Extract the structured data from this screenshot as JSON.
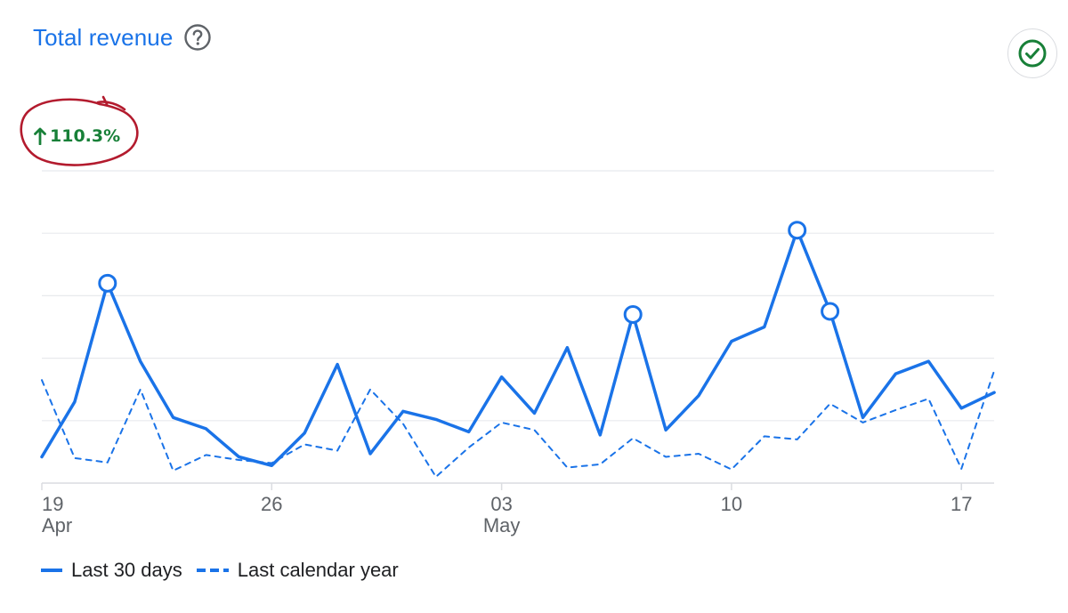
{
  "header": {
    "title": "Total revenue",
    "help_icon": "help-circle-icon",
    "status_icon": "check-circle-icon"
  },
  "change": {
    "value": "110.3%",
    "direction": "up",
    "icon": "arrow-up-icon",
    "color": "#188038",
    "annotation_color": "#b31b2e"
  },
  "chart_data": {
    "type": "line",
    "title": "",
    "xlabel": "",
    "ylabel": "",
    "grid": true,
    "ylim": [
      0,
      5
    ],
    "x_tick_labels": [
      {
        "day": "19",
        "month": "Apr",
        "index": 0
      },
      {
        "day": "26",
        "month": "",
        "index": 7
      },
      {
        "day": "03",
        "month": "May",
        "index": 14
      },
      {
        "day": "10",
        "month": "",
        "index": 21
      },
      {
        "day": "17",
        "month": "",
        "index": 28
      }
    ],
    "legend_position": "bottom-left",
    "series": [
      {
        "name": "Last 30 days",
        "style": "solid",
        "color": "#1a73e8",
        "values": [
          0.42,
          1.3,
          3.2,
          1.95,
          1.05,
          0.87,
          0.42,
          0.28,
          0.8,
          1.9,
          0.47,
          1.15,
          1.02,
          0.82,
          1.7,
          1.12,
          2.17,
          0.77,
          2.7,
          0.85,
          1.4,
          2.27,
          2.5,
          4.05,
          2.75,
          1.05,
          1.75,
          1.95,
          1.2,
          1.45
        ],
        "highlight_indices": [
          2,
          18,
          23,
          24
        ]
      },
      {
        "name": "Last calendar year",
        "style": "dashed",
        "color": "#1a73e8",
        "values": [
          1.65,
          0.4,
          0.33,
          1.5,
          0.2,
          0.45,
          0.37,
          0.32,
          0.62,
          0.52,
          1.5,
          0.95,
          0.1,
          0.57,
          0.97,
          0.85,
          0.25,
          0.3,
          0.72,
          0.42,
          0.47,
          0.22,
          0.75,
          0.7,
          1.27,
          0.97,
          1.17,
          1.35,
          0.23,
          1.8
        ]
      }
    ]
  },
  "legend": {
    "items": [
      {
        "label": "Last 30 days",
        "style": "solid"
      },
      {
        "label": "Last calendar year",
        "style": "dashed"
      }
    ]
  }
}
